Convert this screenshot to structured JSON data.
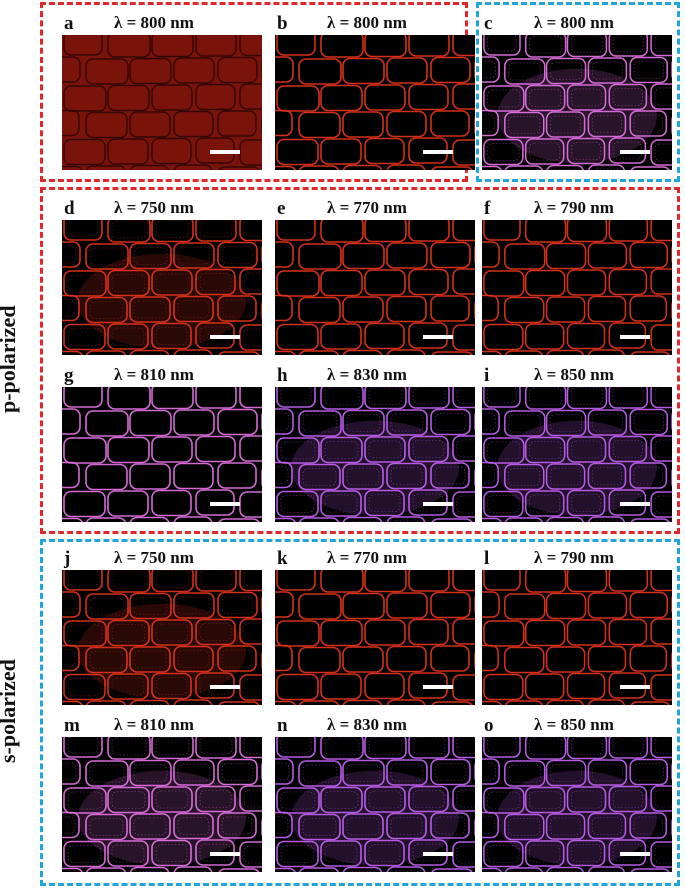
{
  "panels": [
    {
      "letter": "a",
      "wl": "λ = 800 nm",
      "style": "fill-red"
    },
    {
      "letter": "b",
      "wl": "λ = 800 nm",
      "style": "red"
    },
    {
      "letter": "c",
      "wl": "λ = 800 nm",
      "style": "pink-dense"
    },
    {
      "letter": "d",
      "wl": "λ = 750 nm",
      "style": "red-dense"
    },
    {
      "letter": "e",
      "wl": "λ = 770 nm",
      "style": "red"
    },
    {
      "letter": "f",
      "wl": "λ = 790 nm",
      "style": "red"
    },
    {
      "letter": "g",
      "wl": "λ = 810 nm",
      "style": "pink"
    },
    {
      "letter": "h",
      "wl": "λ = 830 nm",
      "style": "purple-dense"
    },
    {
      "letter": "i",
      "wl": "λ = 850 nm",
      "style": "purple-dense"
    },
    {
      "letter": "j",
      "wl": "λ = 750 nm",
      "style": "red-dense"
    },
    {
      "letter": "k",
      "wl": "λ = 770 nm",
      "style": "red"
    },
    {
      "letter": "l",
      "wl": "λ = 790 nm",
      "style": "red"
    },
    {
      "letter": "m",
      "wl": "λ = 810 nm",
      "style": "pink-dense"
    },
    {
      "letter": "n",
      "wl": "λ = 830 nm",
      "style": "purple-dense"
    },
    {
      "letter": "o",
      "wl": "λ = 850 nm",
      "style": "purple-dense"
    }
  ],
  "side_labels": {
    "p": "p-polarized",
    "s": "s-polarized"
  },
  "colors": {
    "red_box": "#e0282a",
    "blue_box": "#1fa4dc",
    "red": "#e0331a",
    "pink": "#e070e0",
    "purple": "#c060f0"
  }
}
